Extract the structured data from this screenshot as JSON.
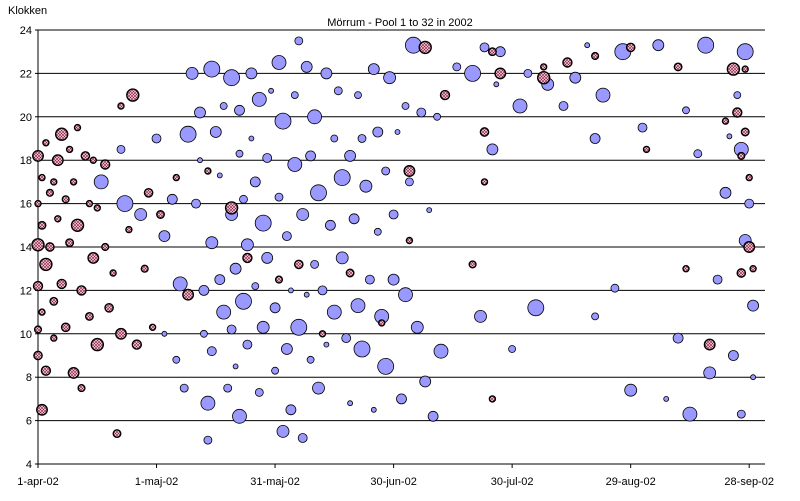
{
  "chart_data": {
    "type": "scatter",
    "title": "Mörrum -  Pool 1 to 32 in 2002",
    "ylabel": "Klokken",
    "xlabel": "",
    "ylim": [
      4,
      24
    ],
    "yticks": [
      4,
      6,
      8,
      10,
      12,
      14,
      16,
      18,
      20,
      22,
      24
    ],
    "xlim": [
      "2002-04-01",
      "2002-10-02"
    ],
    "xticks": [
      {
        "date": "2002-04-01",
        "label": "1-apr-02"
      },
      {
        "date": "2002-05-01",
        "label": "1-maj-02"
      },
      {
        "date": "2002-05-31",
        "label": "31-maj-02"
      },
      {
        "date": "2002-06-30",
        "label": "30-jun-02"
      },
      {
        "date": "2002-07-30",
        "label": "30-jul-02"
      },
      {
        "date": "2002-08-29",
        "label": "29-aug-02"
      },
      {
        "date": "2002-09-28",
        "label": "28-sep-02"
      }
    ],
    "grid": "horizontal",
    "legend": "none",
    "colors": {
      "series_blue": "#9999ff",
      "series_pink": "#ffccdd",
      "outline": "#000000"
    },
    "series": [
      {
        "style": "blue-circle",
        "points": [
          [
            "2002-04-17",
            17
          ],
          [
            "2002-04-22",
            18.5
          ],
          [
            "2002-04-23",
            16
          ],
          [
            "2002-04-27",
            15.5
          ],
          [
            "2002-05-01",
            19
          ],
          [
            "2002-05-03",
            14.5
          ],
          [
            "2002-05-03",
            10
          ],
          [
            "2002-05-05",
            16.2
          ],
          [
            "2002-05-06",
            8.8
          ],
          [
            "2002-05-07",
            12.3
          ],
          [
            "2002-05-08",
            7.5
          ],
          [
            "2002-05-09",
            19.2
          ],
          [
            "2002-05-10",
            22
          ],
          [
            "2002-05-11",
            16
          ],
          [
            "2002-05-12",
            20.2
          ],
          [
            "2002-05-12",
            18
          ],
          [
            "2002-05-13",
            12
          ],
          [
            "2002-05-13",
            10
          ],
          [
            "2002-05-14",
            6.8
          ],
          [
            "2002-05-14",
            5.1
          ],
          [
            "2002-05-15",
            22.2
          ],
          [
            "2002-05-15",
            14.2
          ],
          [
            "2002-05-15",
            9.2
          ],
          [
            "2002-05-16",
            19.3
          ],
          [
            "2002-05-17",
            17.3
          ],
          [
            "2002-05-17",
            12.5
          ],
          [
            "2002-05-18",
            20.5
          ],
          [
            "2002-05-18",
            11
          ],
          [
            "2002-05-19",
            7.5
          ],
          [
            "2002-05-20",
            21.8
          ],
          [
            "2002-05-20",
            15.5
          ],
          [
            "2002-05-20",
            10.2
          ],
          [
            "2002-05-21",
            13
          ],
          [
            "2002-05-21",
            8.5
          ],
          [
            "2002-05-22",
            20.3
          ],
          [
            "2002-05-22",
            18.3
          ],
          [
            "2002-05-22",
            6.2
          ],
          [
            "2002-05-23",
            16.2
          ],
          [
            "2002-05-23",
            11.5
          ],
          [
            "2002-05-24",
            14.1
          ],
          [
            "2002-05-24",
            9.5
          ],
          [
            "2002-05-25",
            22
          ],
          [
            "2002-05-25",
            19
          ],
          [
            "2002-05-26",
            17
          ],
          [
            "2002-05-26",
            12.2
          ],
          [
            "2002-05-27",
            20.8
          ],
          [
            "2002-05-27",
            7.3
          ],
          [
            "2002-05-28",
            15.1
          ],
          [
            "2002-05-28",
            10.3
          ],
          [
            "2002-05-29",
            18.1
          ],
          [
            "2002-05-29",
            13.5
          ],
          [
            "2002-05-30",
            21.2
          ],
          [
            "2002-05-31",
            11.2
          ],
          [
            "2002-05-31",
            8.3
          ],
          [
            "2002-06-01",
            22.5
          ],
          [
            "2002-06-01",
            16.3
          ],
          [
            "2002-06-02",
            19.8
          ],
          [
            "2002-06-02",
            5.5
          ],
          [
            "2002-06-03",
            14.5
          ],
          [
            "2002-06-03",
            9.3
          ],
          [
            "2002-06-04",
            12
          ],
          [
            "2002-06-04",
            6.5
          ],
          [
            "2002-06-05",
            21
          ],
          [
            "2002-06-05",
            17.8
          ],
          [
            "2002-06-06",
            23.5
          ],
          [
            "2002-06-06",
            10.3
          ],
          [
            "2002-06-07",
            15.5
          ],
          [
            "2002-06-07",
            5.2
          ],
          [
            "2002-06-08",
            22.3
          ],
          [
            "2002-06-08",
            11.8
          ],
          [
            "2002-06-09",
            18.2
          ],
          [
            "2002-06-09",
            8.8
          ],
          [
            "2002-06-10",
            20
          ],
          [
            "2002-06-10",
            13.2
          ],
          [
            "2002-06-11",
            16.5
          ],
          [
            "2002-06-11",
            7.5
          ],
          [
            "2002-06-12",
            12
          ],
          [
            "2002-06-13",
            22
          ],
          [
            "2002-06-13",
            9.5
          ],
          [
            "2002-06-14",
            15
          ],
          [
            "2002-06-15",
            19
          ],
          [
            "2002-06-15",
            11
          ],
          [
            "2002-06-16",
            21.2
          ],
          [
            "2002-06-17",
            17.2
          ],
          [
            "2002-06-17",
            13.5
          ],
          [
            "2002-06-18",
            9.8
          ],
          [
            "2002-06-19",
            18.2
          ],
          [
            "2002-06-19",
            6.8
          ],
          [
            "2002-06-20",
            15.3
          ],
          [
            "2002-06-21",
            21
          ],
          [
            "2002-06-21",
            11.3
          ],
          [
            "2002-06-22",
            19
          ],
          [
            "2002-06-22",
            9.3
          ],
          [
            "2002-06-23",
            16.8
          ],
          [
            "2002-06-24",
            12.5
          ],
          [
            "2002-06-25",
            22.2
          ],
          [
            "2002-06-25",
            6.5
          ],
          [
            "2002-06-26",
            19.3
          ],
          [
            "2002-06-26",
            14.7
          ],
          [
            "2002-06-27",
            10.8
          ],
          [
            "2002-06-28",
            17.5
          ],
          [
            "2002-06-28",
            8.5
          ],
          [
            "2002-06-29",
            21.8
          ],
          [
            "2002-06-30",
            15.5
          ],
          [
            "2002-06-30",
            12.5
          ],
          [
            "2002-07-01",
            19.3
          ],
          [
            "2002-07-02",
            7
          ],
          [
            "2002-07-03",
            20.5
          ],
          [
            "2002-07-03",
            11.8
          ],
          [
            "2002-07-04",
            17
          ],
          [
            "2002-07-05",
            23.3
          ],
          [
            "2002-07-06",
            10.3
          ],
          [
            "2002-07-07",
            20.2
          ],
          [
            "2002-07-08",
            7.8
          ],
          [
            "2002-07-09",
            15.7
          ],
          [
            "2002-07-10",
            6.2
          ],
          [
            "2002-07-11",
            20
          ],
          [
            "2002-07-12",
            9.2
          ],
          [
            "2002-07-16",
            22.3
          ],
          [
            "2002-07-20",
            22
          ],
          [
            "2002-07-22",
            10.8
          ],
          [
            "2002-07-23",
            23.2
          ],
          [
            "2002-07-25",
            18.5
          ],
          [
            "2002-07-26",
            21.5
          ],
          [
            "2002-07-27",
            23
          ],
          [
            "2002-07-30",
            9.3
          ],
          [
            "2002-08-01",
            20.5
          ],
          [
            "2002-08-03",
            22
          ],
          [
            "2002-08-05",
            11.2
          ],
          [
            "2002-08-08",
            21.5
          ],
          [
            "2002-08-12",
            20.5
          ],
          [
            "2002-08-15",
            21.8
          ],
          [
            "2002-08-18",
            23.3
          ],
          [
            "2002-08-20",
            19
          ],
          [
            "2002-08-20",
            10.8
          ],
          [
            "2002-08-22",
            21
          ],
          [
            "2002-08-25",
            12.1
          ],
          [
            "2002-08-27",
            23
          ],
          [
            "2002-08-29",
            7.4
          ],
          [
            "2002-09-01",
            19.5
          ],
          [
            "2002-09-05",
            23.3
          ],
          [
            "2002-09-07",
            7
          ],
          [
            "2002-09-10",
            9.8
          ],
          [
            "2002-09-12",
            20.3
          ],
          [
            "2002-09-13",
            6.3
          ],
          [
            "2002-09-15",
            18.3
          ],
          [
            "2002-09-17",
            23.3
          ],
          [
            "2002-09-18",
            8.2
          ],
          [
            "2002-09-20",
            12.5
          ],
          [
            "2002-09-22",
            16.5
          ],
          [
            "2002-09-23",
            19.1
          ],
          [
            "2002-09-24",
            9
          ],
          [
            "2002-09-25",
            21
          ],
          [
            "2002-09-26",
            18.5
          ],
          [
            "2002-09-26",
            6.3
          ],
          [
            "2002-09-27",
            23
          ],
          [
            "2002-09-27",
            14.3
          ],
          [
            "2002-09-28",
            16
          ],
          [
            "2002-09-29",
            11.3
          ],
          [
            "2002-09-29",
            8
          ]
        ]
      },
      {
        "style": "pink-hatched",
        "points": [
          [
            "2002-04-01",
            18.2
          ],
          [
            "2002-04-01",
            16
          ],
          [
            "2002-04-01",
            14.1
          ],
          [
            "2002-04-01",
            12.2
          ],
          [
            "2002-04-01",
            10.2
          ],
          [
            "2002-04-01",
            9
          ],
          [
            "2002-04-02",
            17.2
          ],
          [
            "2002-04-02",
            15
          ],
          [
            "2002-04-02",
            11
          ],
          [
            "2002-04-02",
            6.5
          ],
          [
            "2002-04-03",
            18.8
          ],
          [
            "2002-04-03",
            13.2
          ],
          [
            "2002-04-03",
            8.3
          ],
          [
            "2002-04-04",
            16.5
          ],
          [
            "2002-04-04",
            14
          ],
          [
            "2002-04-05",
            17
          ],
          [
            "2002-04-05",
            11.5
          ],
          [
            "2002-04-05",
            9.8
          ],
          [
            "2002-04-06",
            18
          ],
          [
            "2002-04-06",
            15.3
          ],
          [
            "2002-04-07",
            19.2
          ],
          [
            "2002-04-07",
            12.3
          ],
          [
            "2002-04-08",
            16.2
          ],
          [
            "2002-04-08",
            10.3
          ],
          [
            "2002-04-09",
            18.5
          ],
          [
            "2002-04-09",
            14.2
          ],
          [
            "2002-04-10",
            17
          ],
          [
            "2002-04-10",
            8.2
          ],
          [
            "2002-04-11",
            19.5
          ],
          [
            "2002-04-11",
            15
          ],
          [
            "2002-04-12",
            12
          ],
          [
            "2002-04-12",
            7.5
          ],
          [
            "2002-04-13",
            18.2
          ],
          [
            "2002-04-14",
            16
          ],
          [
            "2002-04-14",
            10.8
          ],
          [
            "2002-04-15",
            18
          ],
          [
            "2002-04-15",
            13.5
          ],
          [
            "2002-04-16",
            15.8
          ],
          [
            "2002-04-16",
            9.5
          ],
          [
            "2002-04-18",
            17.8
          ],
          [
            "2002-04-18",
            14
          ],
          [
            "2002-04-19",
            11.2
          ],
          [
            "2002-04-20",
            12.8
          ],
          [
            "2002-04-21",
            5.4
          ],
          [
            "2002-04-22",
            20.5
          ],
          [
            "2002-04-22",
            10
          ],
          [
            "2002-04-24",
            14.8
          ],
          [
            "2002-04-25",
            21
          ],
          [
            "2002-04-26",
            9.5
          ],
          [
            "2002-04-28",
            13
          ],
          [
            "2002-04-29",
            16.5
          ],
          [
            "2002-04-30",
            10.3
          ],
          [
            "2002-05-02",
            15.5
          ],
          [
            "2002-05-06",
            17.2
          ],
          [
            "2002-05-09",
            11.8
          ],
          [
            "2002-05-14",
            17.5
          ],
          [
            "2002-05-20",
            15.8
          ],
          [
            "2002-05-24",
            13.5
          ],
          [
            "2002-06-01",
            12.5
          ],
          [
            "2002-06-06",
            13.2
          ],
          [
            "2002-06-12",
            10
          ],
          [
            "2002-06-19",
            12.8
          ],
          [
            "2002-06-27",
            10.5
          ],
          [
            "2002-07-04",
            17.5
          ],
          [
            "2002-07-04",
            14.3
          ],
          [
            "2002-07-08",
            23.2
          ],
          [
            "2002-07-13",
            21
          ],
          [
            "2002-07-20",
            13.2
          ],
          [
            "2002-07-23",
            19.3
          ],
          [
            "2002-07-23",
            17
          ],
          [
            "2002-07-25",
            23
          ],
          [
            "2002-07-25",
            7
          ],
          [
            "2002-07-27",
            22
          ],
          [
            "2002-08-07",
            22.3
          ],
          [
            "2002-08-07",
            21.8
          ],
          [
            "2002-08-13",
            22.5
          ],
          [
            "2002-08-20",
            22.8
          ],
          [
            "2002-08-29",
            23.2
          ],
          [
            "2002-09-02",
            18.5
          ],
          [
            "2002-09-10",
            22.3
          ],
          [
            "2002-09-12",
            13
          ],
          [
            "2002-09-18",
            9.5
          ],
          [
            "2002-09-22",
            19.8
          ],
          [
            "2002-09-24",
            22.2
          ],
          [
            "2002-09-25",
            20.2
          ],
          [
            "2002-09-26",
            18.2
          ],
          [
            "2002-09-26",
            12.8
          ],
          [
            "2002-09-27",
            22.2
          ],
          [
            "2002-09-27",
            19.3
          ],
          [
            "2002-09-28",
            17.2
          ],
          [
            "2002-09-28",
            14
          ],
          [
            "2002-09-29",
            13
          ]
        ]
      }
    ]
  }
}
